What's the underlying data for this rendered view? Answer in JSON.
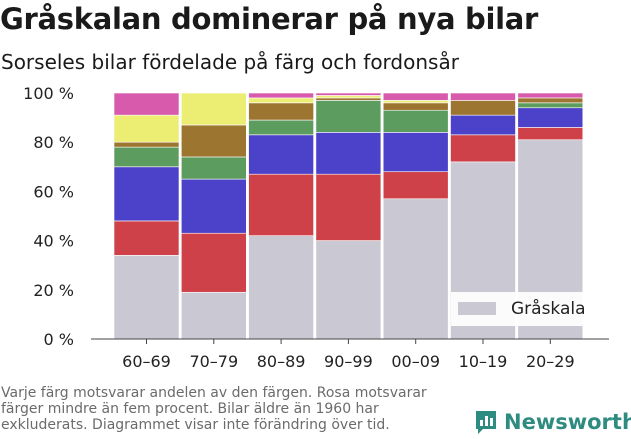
{
  "header": {
    "title": "Gråskalan dominerar på nya bilar",
    "subtitle": "Sorseles bilar fördelade på färg och fordonsår"
  },
  "footnote": [
    "Varje färg motsvarar andelen av den färgen. Rosa motsvarar",
    "färger mindre än fem procent. Bilar äldre än 1960 har",
    "exkluderats. Diagrammet visar inte förändring över tid."
  ],
  "brand": {
    "name": "Newsworthy",
    "icon": "bar-chart-logo-icon",
    "color": "#2e8b80"
  },
  "chart_data": {
    "type": "bar",
    "stacked": true,
    "categories": [
      "60–69",
      "70–79",
      "80–89",
      "90–99",
      "00–09",
      "10–19",
      "20–29"
    ],
    "yticks": [
      "0 %",
      "20 %",
      "40 %",
      "60 %",
      "80 %",
      "100 %"
    ],
    "ylim": [
      0,
      100
    ],
    "grid": false,
    "legend": {
      "position": "bottom-right",
      "entries": [
        "Gråskala"
      ]
    },
    "series": [
      {
        "name": "Gråskala",
        "color": "#c9c8d3",
        "values": [
          34,
          19,
          42,
          40,
          57,
          72,
          81
        ]
      },
      {
        "color": "#cf4148",
        "values": [
          14,
          24,
          25,
          27,
          11,
          11,
          5
        ]
      },
      {
        "color": "#4b42c9",
        "values": [
          22,
          22,
          16,
          17,
          16,
          8,
          8
        ]
      },
      {
        "color": "#5c9c5e",
        "values": [
          8,
          9,
          6,
          13,
          9,
          0,
          2
        ]
      },
      {
        "color": "#9c7530",
        "values": [
          2,
          13,
          7,
          1,
          3,
          6,
          2
        ]
      },
      {
        "color": "#ecee74",
        "values": [
          11,
          13,
          2,
          1,
          1,
          0,
          0
        ]
      },
      {
        "color": "#d85aac",
        "values": [
          9,
          0,
          2,
          1,
          3,
          3,
          2
        ]
      }
    ]
  }
}
